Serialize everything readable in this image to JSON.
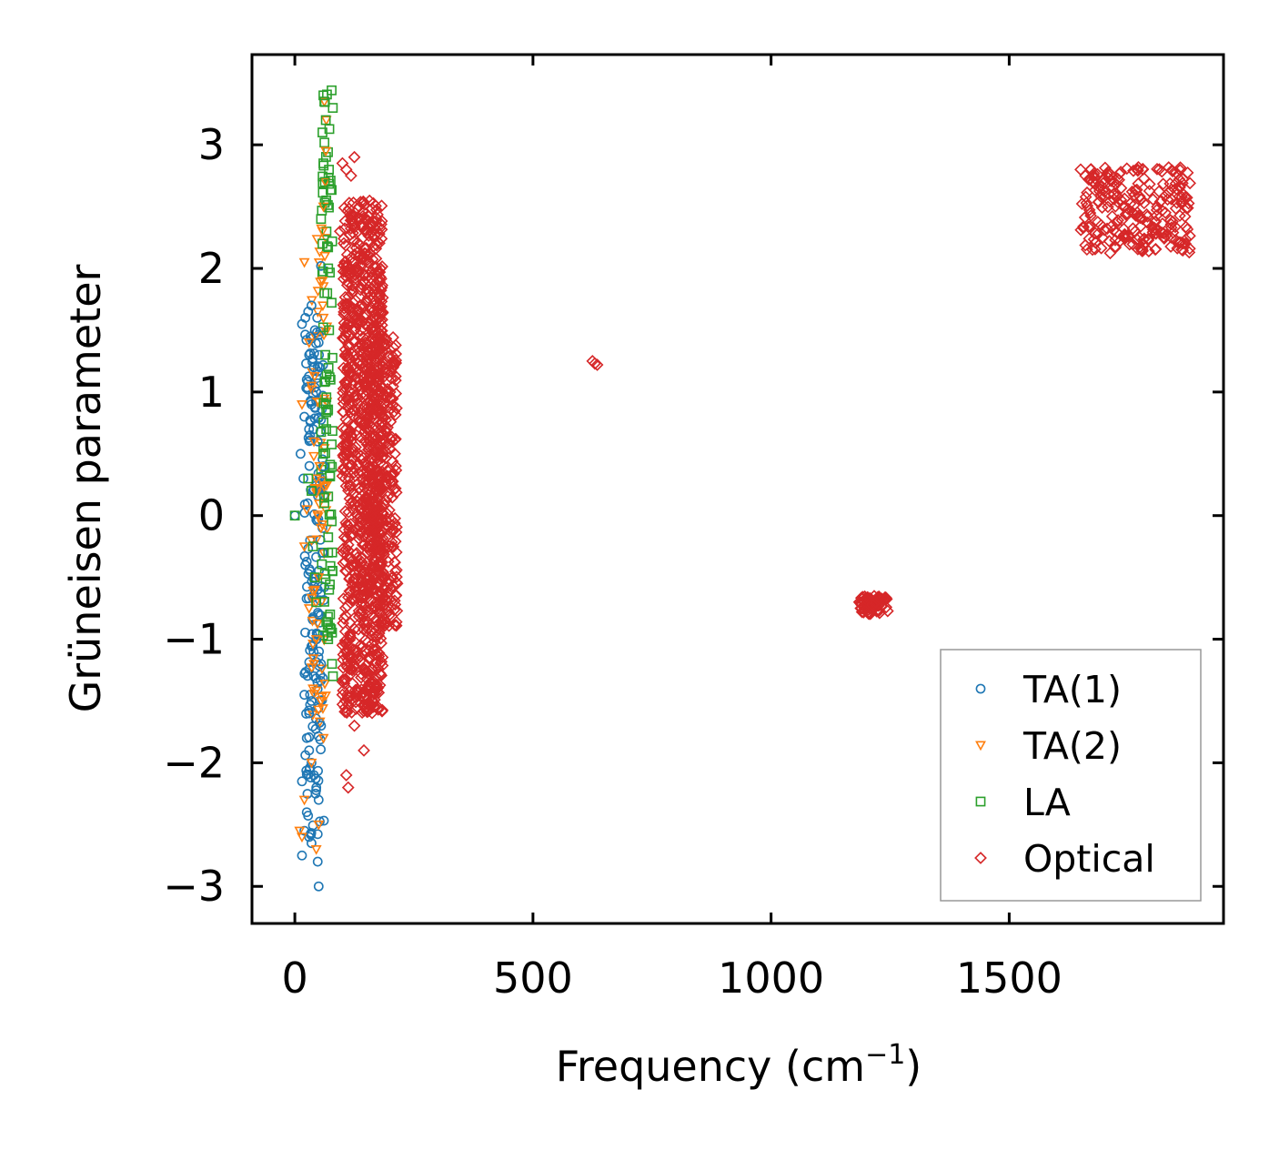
{
  "chart_data": {
    "type": "scatter",
    "title": "",
    "xlabel": "Frequency (cm",
    "xlabel_sup": "−1",
    "xlabel_close": ")",
    "ylabel": "Grüneisen parameter",
    "xlim": [
      -90,
      1950
    ],
    "ylim": [
      -3.3,
      3.73
    ],
    "xticks": [
      0,
      500,
      1000,
      1500
    ],
    "xtick_labels": [
      "0",
      "500",
      "1000",
      "1500"
    ],
    "yticks": [
      -3,
      -2,
      -1,
      0,
      1,
      2,
      3
    ],
    "ytick_labels": [
      "−3",
      "−2",
      "−1",
      "0",
      "1",
      "2",
      "3"
    ],
    "grid": false,
    "legend_position": "lower-right",
    "series": [
      {
        "name": "TA(1)",
        "marker": "circle",
        "color": "#1f77b4",
        "points": [
          [
            0,
            0.0
          ],
          [
            15,
            1.55
          ],
          [
            22,
            1.6
          ],
          [
            28,
            1.65
          ],
          [
            35,
            1.7
          ],
          [
            55,
            2.02
          ],
          [
            42,
            1.5
          ],
          [
            12,
            0.5
          ],
          [
            18,
            0.3
          ],
          [
            20,
            0.8
          ],
          [
            25,
            1.1
          ],
          [
            30,
            1.3
          ],
          [
            35,
            0.9
          ],
          [
            40,
            1.2
          ],
          [
            45,
            1.0
          ],
          [
            50,
            1.4
          ],
          [
            48,
            0.6
          ],
          [
            38,
            0.2
          ],
          [
            32,
            -0.2
          ],
          [
            42,
            -0.5
          ],
          [
            50,
            -0.8
          ],
          [
            55,
            -1.2
          ],
          [
            45,
            -1.0
          ],
          [
            40,
            -1.3
          ],
          [
            35,
            -1.5
          ],
          [
            30,
            -1.6
          ],
          [
            20,
            -1.45
          ],
          [
            25,
            -1.8
          ],
          [
            30,
            -1.9
          ],
          [
            35,
            -2.0
          ],
          [
            40,
            -2.1
          ],
          [
            45,
            -2.2
          ],
          [
            50,
            -2.3
          ],
          [
            15,
            -2.15
          ],
          [
            25,
            -2.4
          ],
          [
            20,
            -2.55
          ],
          [
            30,
            -2.6
          ],
          [
            35,
            -2.65
          ],
          [
            15,
            -2.75
          ],
          [
            48,
            -2.8
          ],
          [
            50,
            -3.0
          ],
          [
            55,
            -1.7
          ],
          [
            58,
            -0.3
          ],
          [
            60,
            0.4
          ],
          [
            52,
            1.2
          ],
          [
            47,
            1.6
          ],
          [
            33,
            1.45
          ],
          [
            27,
            0.1
          ],
          [
            22,
            -0.4
          ]
        ]
      },
      {
        "name": "TA(2)",
        "marker": "triangle-down",
        "color": "#ff7f0e",
        "points": [
          [
            20,
            2.05
          ],
          [
            62,
            3.35
          ],
          [
            65,
            2.95
          ],
          [
            60,
            2.5
          ],
          [
            58,
            2.3
          ],
          [
            63,
            2.1
          ],
          [
            60,
            1.6
          ],
          [
            30,
            1.4
          ],
          [
            35,
            1.05
          ],
          [
            15,
            0.9
          ],
          [
            40,
            0.6
          ],
          [
            45,
            0.3
          ],
          [
            25,
            0.05
          ],
          [
            55,
            -0.1
          ],
          [
            35,
            -0.2
          ],
          [
            20,
            -0.25
          ],
          [
            30,
            -0.75
          ],
          [
            50,
            -0.5
          ],
          [
            45,
            -1.0
          ],
          [
            40,
            -1.2
          ],
          [
            55,
            -1.5
          ],
          [
            60,
            -1.8
          ],
          [
            35,
            -2.0
          ],
          [
            20,
            -2.3
          ],
          [
            10,
            -2.55
          ],
          [
            15,
            -2.6
          ],
          [
            45,
            -2.7
          ],
          [
            50,
            -2.5
          ],
          [
            58,
            1.9
          ],
          [
            64,
            2.7
          ],
          [
            66,
            3.2
          ],
          [
            52,
            0.4
          ],
          [
            42,
            -0.6
          ],
          [
            38,
            -1.4
          ]
        ]
      },
      {
        "name": "LA",
        "marker": "square",
        "color": "#2ca02c",
        "points": [
          [
            0,
            0.0
          ],
          [
            28,
            0.3
          ],
          [
            35,
            0.2
          ],
          [
            38,
            -0.25
          ],
          [
            42,
            -0.5
          ],
          [
            45,
            -0.7
          ],
          [
            60,
            3.4
          ],
          [
            62,
            3.35
          ],
          [
            58,
            3.1
          ],
          [
            65,
            3.2
          ],
          [
            60,
            2.85
          ],
          [
            63,
            2.7
          ],
          [
            66,
            2.55
          ],
          [
            55,
            2.4
          ],
          [
            70,
            2.0
          ],
          [
            68,
            1.8
          ],
          [
            72,
            1.5
          ],
          [
            75,
            1.1
          ],
          [
            65,
            0.9
          ],
          [
            60,
            0.5
          ],
          [
            62,
            0.1
          ],
          [
            70,
            -0.3
          ],
          [
            74,
            -0.8
          ],
          [
            78,
            -1.2
          ],
          [
            70,
            -1.0
          ],
          [
            58,
            2.2
          ],
          [
            64,
            1.3
          ],
          [
            66,
            0.7
          ],
          [
            72,
            -0.6
          ],
          [
            80,
            -1.3
          ]
        ]
      },
      {
        "name": "Optical",
        "marker": "diamond",
        "color": "#d62728",
        "points": [
          [
            100,
            2.85
          ],
          [
            108,
            2.8
          ],
          [
            125,
            2.9
          ],
          [
            118,
            2.75
          ],
          [
            112,
            -2.2
          ],
          [
            108,
            -2.1
          ],
          [
            145,
            -1.9
          ],
          [
            160,
            -1.4
          ],
          [
            125,
            -1.7
          ],
          [
            100,
            -1.45
          ],
          [
            115,
            -1.2
          ],
          [
            180,
            2.0
          ],
          [
            175,
            1.7
          ],
          [
            200,
            1.0
          ],
          [
            210,
            0.5
          ],
          [
            205,
            -0.5
          ],
          [
            200,
            -0.8
          ],
          [
            185,
            -0.7
          ],
          [
            150,
            1.8
          ],
          [
            135,
            2.5
          ],
          [
            95,
            2.3
          ],
          [
            625,
            1.25
          ],
          [
            630,
            1.23
          ],
          [
            635,
            1.22
          ],
          [
            1190,
            -0.75
          ],
          [
            1195,
            -0.7
          ],
          [
            1200,
            -0.68
          ],
          [
            1205,
            -0.78
          ],
          [
            1212,
            -0.72
          ],
          [
            1220,
            -0.7
          ],
          [
            1230,
            -0.68
          ],
          [
            1240,
            -0.68
          ],
          [
            1650,
            2.8
          ],
          [
            1660,
            2.75
          ],
          [
            1670,
            2.72
          ],
          [
            1680,
            2.68
          ],
          [
            1690,
            2.65
          ],
          [
            1700,
            2.62
          ],
          [
            1710,
            2.6
          ],
          [
            1720,
            2.56
          ],
          [
            1730,
            2.53
          ],
          [
            1740,
            2.5
          ],
          [
            1750,
            2.48
          ],
          [
            1760,
            2.45
          ],
          [
            1770,
            2.42
          ],
          [
            1780,
            2.4
          ],
          [
            1790,
            2.37
          ],
          [
            1800,
            2.34
          ],
          [
            1810,
            2.31
          ],
          [
            1820,
            2.29
          ],
          [
            1830,
            2.27
          ],
          [
            1840,
            2.25
          ],
          [
            1850,
            2.23
          ],
          [
            1860,
            2.21
          ],
          [
            1870,
            2.2
          ],
          [
            1878,
            2.13
          ]
        ]
      }
    ],
    "clusters": [
      {
        "series": "TA(1)",
        "x_range": [
          20,
          62
        ],
        "y_range": [
          -2.6,
          1.5
        ],
        "count": 160
      },
      {
        "series": "TA(2)",
        "x_range": [
          35,
          68
        ],
        "y_range": [
          -1.8,
          2.4
        ],
        "count": 60
      },
      {
        "series": "LA",
        "x_range": [
          55,
          80
        ],
        "y_range": [
          -1.0,
          3.45
        ],
        "count": 80
      },
      {
        "series": "Optical",
        "x_range": [
          100,
          185
        ],
        "y_range": [
          -1.6,
          2.55
        ],
        "count": 950
      },
      {
        "series": "Optical",
        "x_range": [
          150,
          215
        ],
        "y_range": [
          -0.9,
          1.45
        ],
        "count": 350
      },
      {
        "series": "Optical",
        "x_range": [
          1185,
          1245
        ],
        "y_range": [
          -0.8,
          -0.65
        ],
        "count": 60
      },
      {
        "series": "Optical",
        "x_range": [
          1650,
          1880
        ],
        "y_range": [
          2.12,
          2.82
        ],
        "count": 220
      }
    ]
  }
}
